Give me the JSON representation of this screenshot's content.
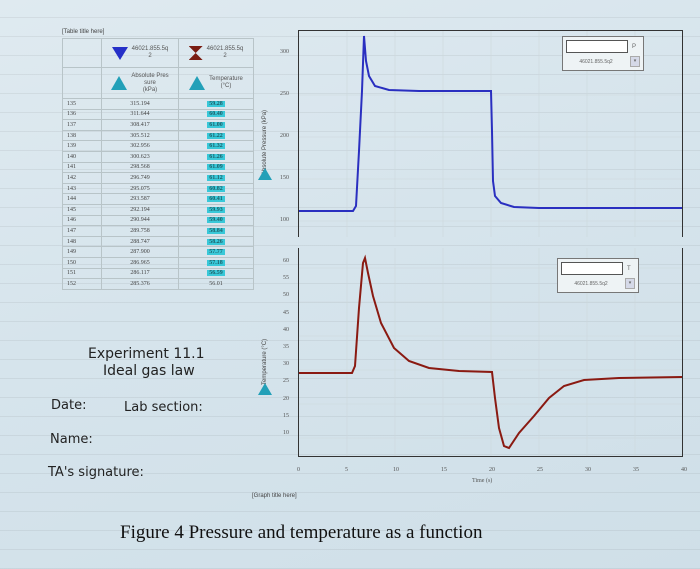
{
  "table": {
    "title": "[Table title here]",
    "sensor1": {
      "name": "46021.855.5q",
      "sub": "2",
      "header": "Absolute Pressure (kPa)",
      "header_lines": [
        "Absolute Pres",
        "sure",
        "(kPa)"
      ]
    },
    "sensor2": {
      "name": "46021.855.5q",
      "sub": "2",
      "header": "Temperature (°C)",
      "header_lines": [
        "Temperature",
        "(°C)"
      ]
    },
    "rows": [
      {
        "idx": "135",
        "p": "315.194",
        "t": "59.28",
        "hl": true
      },
      {
        "idx": "136",
        "p": "311.644",
        "t": "60.40",
        "hl": true
      },
      {
        "idx": "137",
        "p": "308.417",
        "t": "61.00",
        "hl": true
      },
      {
        "idx": "138",
        "p": "305.512",
        "t": "61.22",
        "hl": true
      },
      {
        "idx": "139",
        "p": "302.956",
        "t": "61.32",
        "hl": true
      },
      {
        "idx": "140",
        "p": "300.623",
        "t": "61.26",
        "hl": true
      },
      {
        "idx": "141",
        "p": "298.568",
        "t": "61.09",
        "hl": true
      },
      {
        "idx": "142",
        "p": "296.749",
        "t": "61.12",
        "hl": true
      },
      {
        "idx": "143",
        "p": "295.075",
        "t": "60.82",
        "hl": true
      },
      {
        "idx": "144",
        "p": "293.587",
        "t": "60.41",
        "hl": true
      },
      {
        "idx": "145",
        "p": "292.194",
        "t": "59.93",
        "hl": true
      },
      {
        "idx": "146",
        "p": "290.944",
        "t": "59.40",
        "hl": true
      },
      {
        "idx": "147",
        "p": "289.758",
        "t": "58.84",
        "hl": true
      },
      {
        "idx": "148",
        "p": "288.747",
        "t": "58.26",
        "hl": true
      },
      {
        "idx": "149",
        "p": "287.900",
        "t": "57.77",
        "hl": true
      },
      {
        "idx": "150",
        "p": "286.965",
        "t": "57.18",
        "hl": true
      },
      {
        "idx": "151",
        "p": "286.117",
        "t": "56.59",
        "hl": true
      },
      {
        "idx": "152",
        "p": "285.376",
        "t": "56.01",
        "hl": false
      }
    ]
  },
  "pressure_chart": {
    "ylabel": "Absolute Pressure (kPa)",
    "yticks": [
      "300",
      "250",
      "200",
      "150",
      "100"
    ],
    "sensor_box": {
      "value": "",
      "unit": "P",
      "sensor": "46021.855.5q2",
      "dropdown": "▾"
    },
    "color": "#2a2fc0"
  },
  "temp_chart": {
    "ylabel": "Temperature (°C)",
    "yticks": [
      "60",
      "55",
      "50",
      "45",
      "40",
      "35",
      "30",
      "25",
      "20",
      "15",
      "10"
    ],
    "xticks": [
      "0",
      "5",
      "10",
      "15",
      "20",
      "25",
      "30",
      "35",
      "40"
    ],
    "xlabel": "Time (s)",
    "sensor_box": {
      "value": "",
      "unit": "T",
      "sensor": "46021.855.5q2",
      "dropdown": "▾"
    },
    "color": "#8a1a12"
  },
  "graph_title": "[Graph title here]",
  "handwritten": {
    "experiment": "Experiment 11.1",
    "subtitle": "Ideal gas law",
    "date_label": "Date:",
    "lab_section_label": "Lab section:",
    "name_label": "Name:",
    "ta_label": "TA's signature:"
  },
  "caption": "Figure 4  Pressure and temperature as a function",
  "chart_data": [
    {
      "type": "line",
      "title": "",
      "xlabel": "Time (s)",
      "ylabel": "Absolute Pressure (kPa)",
      "ylim": [
        95,
        335
      ],
      "xlim": [
        0,
        40
      ],
      "series": [
        {
          "name": "Absolute Pressure (46021.855.5q2)",
          "x": [
            0,
            5,
            6.2,
            6.5,
            7,
            7.3,
            7.6,
            8,
            9,
            10,
            12,
            15,
            18,
            20.5,
            20.6,
            20.8,
            21,
            22,
            24,
            27,
            30,
            35,
            40
          ],
          "y": [
            101,
            101,
            101,
            160,
            280,
            328,
            305,
            292,
            280,
            277,
            275,
            275,
            275,
            275,
            230,
            150,
            122,
            112,
            107,
            105,
            105,
            105,
            105
          ]
        }
      ]
    },
    {
      "type": "line",
      "title": "",
      "xlabel": "Time (s)",
      "ylabel": "Temperature (°C)",
      "ylim": [
        10,
        62
      ],
      "xlim": [
        0,
        40
      ],
      "series": [
        {
          "name": "Temperature (46021.855.5q2)",
          "x": [
            0,
            5,
            6.2,
            7,
            7.5,
            8,
            9,
            10,
            11,
            12,
            14,
            16,
            18,
            20.5,
            21,
            22,
            22.5,
            24,
            26,
            28,
            30,
            33,
            36,
            40
          ],
          "y": [
            30.8,
            30.8,
            30.8,
            50,
            60.5,
            56,
            46,
            40,
            36,
            34,
            32.3,
            31.5,
            31,
            30.8,
            20,
            11.5,
            11,
            15,
            21,
            25,
            27.5,
            28.5,
            28.8,
            29
          ]
        }
      ]
    }
  ]
}
